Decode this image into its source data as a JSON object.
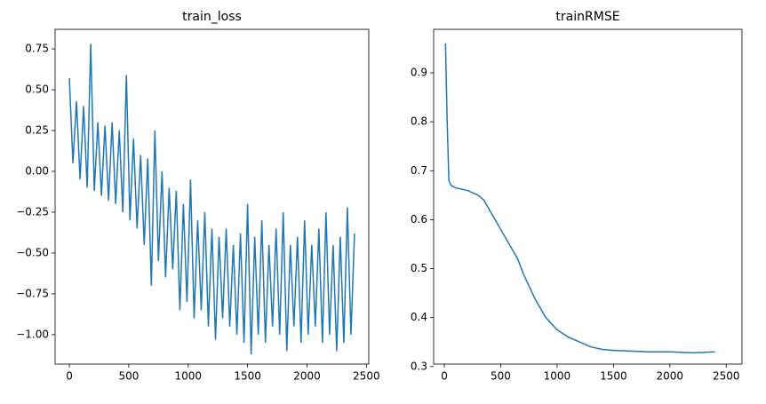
{
  "chart_data": [
    {
      "type": "line",
      "title": "train_loss",
      "x": [
        0,
        30,
        60,
        90,
        120,
        150,
        180,
        210,
        240,
        270,
        300,
        330,
        360,
        390,
        420,
        450,
        480,
        510,
        540,
        570,
        600,
        630,
        660,
        690,
        720,
        750,
        780,
        810,
        840,
        870,
        900,
        930,
        960,
        990,
        1020,
        1050,
        1080,
        1110,
        1140,
        1170,
        1200,
        1230,
        1260,
        1290,
        1320,
        1350,
        1380,
        1410,
        1440,
        1470,
        1500,
        1530,
        1560,
        1590,
        1620,
        1650,
        1680,
        1710,
        1740,
        1770,
        1800,
        1830,
        1860,
        1890,
        1920,
        1950,
        1980,
        2010,
        2040,
        2070,
        2100,
        2130,
        2160,
        2190,
        2220,
        2250,
        2280,
        2310,
        2340,
        2370,
        2400
      ],
      "series": [
        {
          "color": "#1f77b4",
          "values": [
            0.57,
            0.05,
            0.43,
            -0.05,
            0.4,
            -0.1,
            0.78,
            -0.12,
            0.3,
            -0.15,
            0.28,
            -0.18,
            0.3,
            -0.2,
            0.25,
            -0.25,
            0.59,
            -0.3,
            0.2,
            -0.35,
            0.1,
            -0.45,
            0.08,
            -0.7,
            0.25,
            -0.55,
            0.0,
            -0.65,
            -0.1,
            -0.6,
            -0.12,
            -0.85,
            -0.2,
            -0.8,
            -0.05,
            -0.9,
            -0.3,
            -0.85,
            -0.25,
            -0.95,
            -0.35,
            -1.03,
            -0.4,
            -0.9,
            -0.35,
            -0.95,
            -0.45,
            -1.0,
            -0.38,
            -1.05,
            -0.2,
            -1.12,
            -0.4,
            -1.0,
            -0.3,
            -1.05,
            -0.45,
            -0.95,
            -0.35,
            -1.0,
            -0.25,
            -1.1,
            -0.45,
            -0.95,
            -0.4,
            -1.05,
            -0.3,
            -1.0,
            -0.45,
            -0.95,
            -0.35,
            -1.05,
            -0.25,
            -1.0,
            -0.45,
            -1.1,
            -0.4,
            -1.05,
            -0.22,
            -1.0,
            -0.38
          ]
        }
      ],
      "xlim": [
        -120,
        2520
      ],
      "xticks": [
        0,
        500,
        1000,
        1500,
        2000,
        2500
      ],
      "ylim": [
        -1.18,
        0.87
      ],
      "yticks": [
        {
          "value": -1,
          "label": "−1.00"
        },
        {
          "value": -0.75,
          "label": "−0.75"
        },
        {
          "value": -0.5,
          "label": "−0.50"
        },
        {
          "value": -0.25,
          "label": "−0.25"
        },
        {
          "value": 0,
          "label": "0.00"
        },
        {
          "value": 0.25,
          "label": "0.25"
        },
        {
          "value": 0.5,
          "label": "0.50"
        },
        {
          "value": 0.75,
          "label": "0.75"
        }
      ]
    },
    {
      "type": "line",
      "title": "trainRMSE",
      "x": [
        10,
        25,
        40,
        60,
        100,
        200,
        300,
        350,
        400,
        500,
        550,
        600,
        650,
        700,
        800,
        900,
        1000,
        1100,
        1200,
        1300,
        1400,
        1500,
        1600,
        1800,
        2000,
        2200,
        2400
      ],
      "series": [
        {
          "color": "#1f77b4",
          "values": [
            0.96,
            0.8,
            0.68,
            0.67,
            0.665,
            0.66,
            0.65,
            0.64,
            0.62,
            0.58,
            0.56,
            0.54,
            0.52,
            0.49,
            0.44,
            0.4,
            0.375,
            0.36,
            0.35,
            0.34,
            0.335,
            0.333,
            0.332,
            0.33,
            0.33,
            0.328,
            0.33
          ]
        }
      ],
      "xlim": [
        -95,
        2640
      ],
      "xticks": [
        0,
        500,
        1000,
        1500,
        2000,
        2500
      ],
      "ylim": [
        0.305,
        0.989
      ],
      "yticks": [
        0.3,
        0.4,
        0.5,
        0.6,
        0.7,
        0.8,
        0.9
      ]
    }
  ]
}
